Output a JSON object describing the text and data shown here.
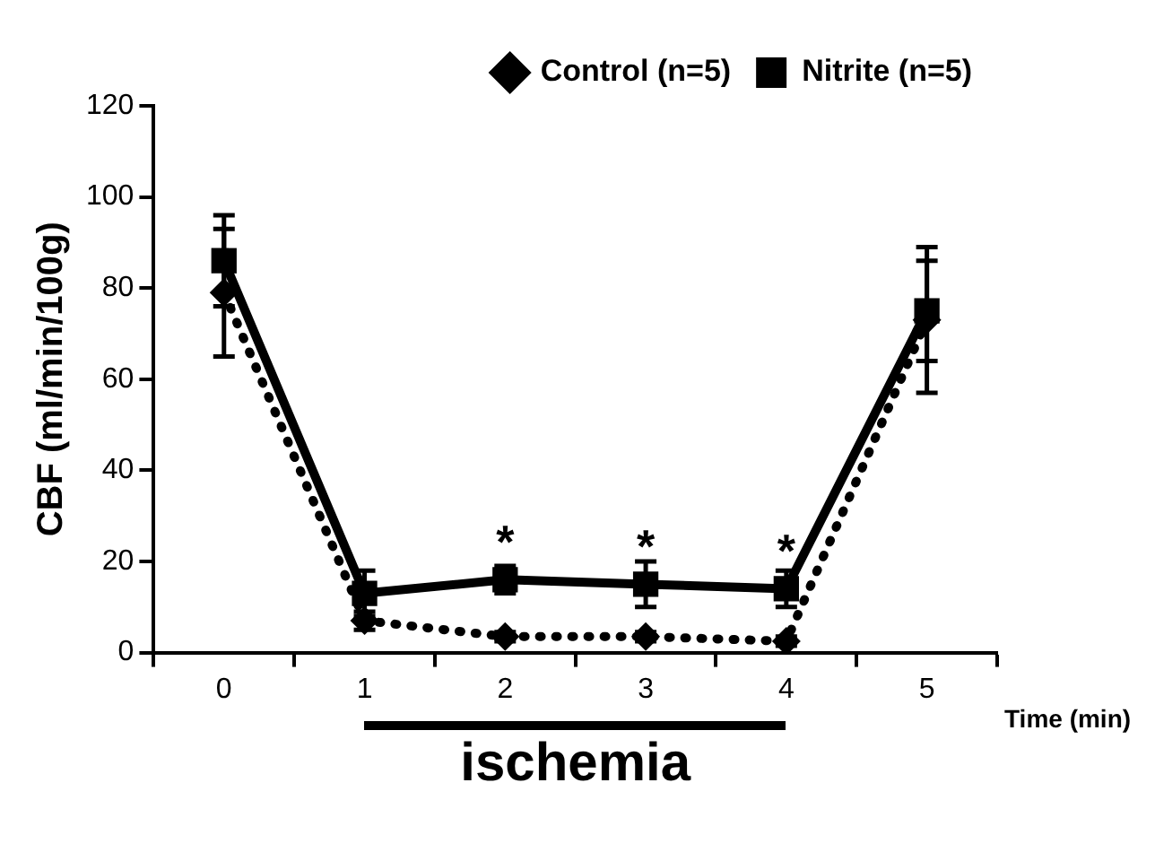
{
  "chart_data": {
    "type": "line",
    "ylabel": "CBF (ml/min/100g)",
    "xlabel": "Time (min)",
    "categories": [
      "0",
      "1",
      "2",
      "3",
      "4",
      "5"
    ],
    "ylim": [
      0,
      120
    ],
    "yticks": [
      0,
      20,
      40,
      60,
      80,
      100,
      120
    ],
    "series": [
      {
        "name": "Control (n=5)",
        "color": "#000000",
        "marker": "diamond",
        "line_style": "dotted",
        "values": [
          79,
          7,
          3.5,
          3.5,
          2.5,
          73
        ],
        "errors": [
          14,
          2,
          1,
          1,
          1,
          16
        ]
      },
      {
        "name": "Nitrite (n=5)",
        "color": "#000000",
        "marker": "square",
        "line_style": "solid",
        "values": [
          86,
          13,
          16,
          15,
          14,
          75
        ],
        "errors": [
          10,
          5,
          3,
          5,
          4,
          11
        ]
      }
    ],
    "annotations": [
      {
        "text": "*",
        "x": "2",
        "y": 16
      },
      {
        "text": "*",
        "x": "3",
        "y": 15
      },
      {
        "text": "*",
        "x": "4",
        "y": 14
      },
      "ischemia"
    ],
    "grid": false,
    "legend": "top right"
  }
}
